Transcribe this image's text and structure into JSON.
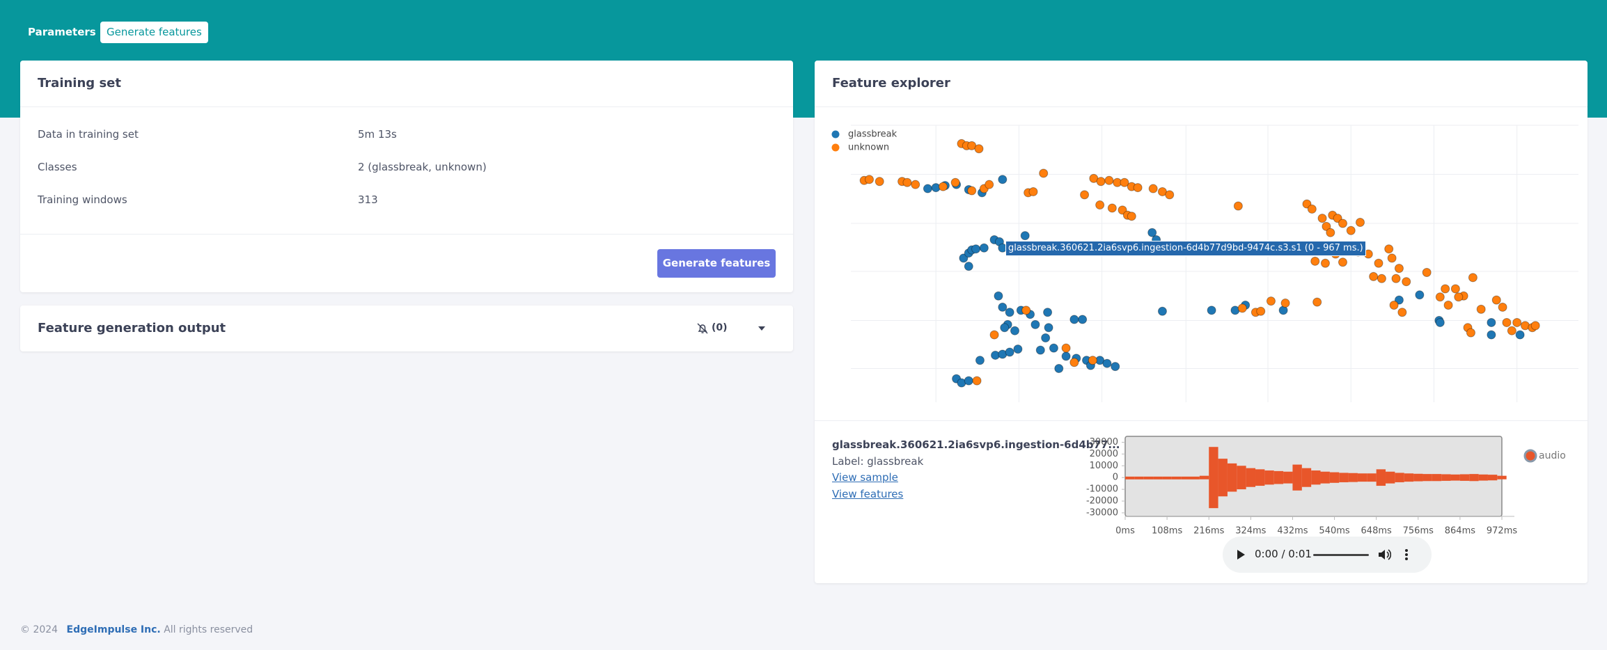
{
  "tabs": [
    "Parameters",
    "Generate features"
  ],
  "training_set": {
    "title": "Training set",
    "rows": [
      [
        "Data in training set",
        "5m 13s"
      ],
      [
        "Classes",
        "2 (glassbreak, unknown)"
      ],
      [
        "Training windows",
        "313"
      ]
    ],
    "button": "Generate features"
  },
  "output": {
    "title": "Feature generation output",
    "count": "(0)"
  },
  "feature_explorer": {
    "title": "Feature explorer",
    "tooltip": "glassbreak.360621.2ia6svp6.ingestion-6d4b77d9bd-9474c.s3.s1 (0 - 967 ms.)"
  },
  "sample": {
    "title": "glassbreak.360621.2ia6svp6.ingestion-6d4b77...",
    "label": "Label: glassbreak",
    "links": [
      "View sample",
      "View features"
    ],
    "player_time": "0:00 / 0:01"
  },
  "footer": {
    "copyright": "© 2024",
    "company": "EdgeImpulse Inc.",
    "rights": "All rights reserved"
  },
  "chart_data": [
    {
      "type": "scatter",
      "xlim": [
        0,
        710
      ],
      "ylim": [
        0,
        271
      ],
      "xticks": [
        83,
        164,
        245,
        327,
        407,
        488,
        569,
        650
      ],
      "yticks": [
        33,
        80,
        128,
        175,
        223,
        271
      ],
      "grid": true,
      "legend": "upper left",
      "series": [
        {
          "name": "glassbreak",
          "color": "#1f77b4",
          "x": [
            75,
            83,
            92,
            103,
            115,
            128,
            148,
            110,
            115,
            118,
            122,
            130,
            140,
            145,
            115,
            148,
            170,
            294,
            298,
            304,
            352,
            375,
            385,
            422,
            574,
            575,
            653,
            625,
            625,
            144,
            148,
            155,
            153,
            150,
            160,
            166,
            175,
            180,
            190,
            193,
            198,
            210,
            220,
            226,
            230,
            234,
            243,
            250,
            258,
            203,
            141,
            148,
            155,
            163,
            126,
            103,
            108,
            115,
            535,
            555,
            192,
            218,
            185
          ],
          "y": [
            209,
            210,
            212,
            213,
            208,
            205,
            218,
            141,
            146,
            149,
            150,
            151,
            159,
            157,
            133,
            151,
            163,
            166,
            159,
            89,
            90,
            90,
            95,
            90,
            80,
            78,
            66,
            78,
            66,
            104,
            93,
            88,
            76,
            73,
            70,
            90,
            86,
            76,
            63,
            73,
            53,
            45,
            43,
            81,
            41,
            36,
            41,
            38,
            35,
            33,
            46,
            47,
            49,
            52,
            41,
            23,
            19,
            21,
            100,
            105,
            88,
            81,
            51
          ]
        },
        {
          "name": "unknown",
          "color": "#ff7f0e",
          "x": [
            108,
            113,
            118,
            125,
            13,
            18,
            28,
            50,
            55,
            63,
            90,
            102,
            118,
            130,
            135,
            173,
            178,
            188,
            228,
            237,
            244,
            252,
            260,
            267,
            274,
            280,
            295,
            304,
            311,
            243,
            255,
            265,
            270,
            274,
            378,
            445,
            450,
            460,
            464,
            468,
            470,
            475,
            480,
            488,
            497,
            453,
            463,
            473,
            480,
            490,
            495,
            505,
            515,
            525,
            528,
            535,
            542,
            532,
            518,
            510,
            562,
            580,
            590,
            598,
            607,
            593,
            615,
            630,
            636,
            640,
            645,
            650,
            658,
            665,
            668,
            382,
            395,
            400,
            410,
            424,
            455,
            538,
            530,
            575,
            583,
            602,
            605,
            123,
            218,
            236,
            140,
            171,
            210
          ],
          "y": [
            253,
            251,
            251,
            248,
            217,
            218,
            216,
            216,
            215,
            213,
            211,
            215,
            207,
            209,
            213,
            205,
            206,
            224,
            203,
            219,
            216,
            217,
            215,
            215,
            211,
            210,
            209,
            206,
            203,
            193,
            190,
            188,
            183,
            182,
            192,
            194,
            189,
            180,
            172,
            166,
            183,
            180,
            175,
            168,
            176,
            138,
            136,
            145,
            137,
            151,
            147,
            145,
            136,
            150,
            141,
            131,
            118,
            121,
            121,
            123,
            127,
            111,
            111,
            104,
            122,
            103,
            91,
            100,
            93,
            78,
            70,
            78,
            75,
            73,
            75,
            92,
            88,
            89,
            99,
            97,
            98,
            88,
            95,
            103,
            95,
            73,
            68,
            21,
            39,
            41,
            66,
            90,
            53
          ]
        }
      ]
    },
    {
      "type": "area",
      "xlim": [
        0,
        972
      ],
      "ylim": [
        -33000,
        35000
      ],
      "xticks": [
        {
          "value": 0,
          "label": "0ms"
        },
        {
          "value": 108,
          "label": "108ms"
        },
        {
          "value": 216,
          "label": "216ms"
        },
        {
          "value": 324,
          "label": "324ms"
        },
        {
          "value": 432,
          "label": "432ms"
        },
        {
          "value": 540,
          "label": "540ms"
        },
        {
          "value": 648,
          "label": "648ms"
        },
        {
          "value": 756,
          "label": "756ms"
        },
        {
          "value": 864,
          "label": "864ms"
        },
        {
          "value": 972,
          "label": "972ms"
        }
      ],
      "yticks": [
        30000,
        20000,
        10000,
        0,
        -10000,
        -20000,
        -30000
      ],
      "x": [
        0,
        24,
        48,
        72,
        96,
        120,
        144,
        168,
        192,
        216,
        240,
        264,
        288,
        312,
        336,
        360,
        384,
        408,
        432,
        456,
        480,
        504,
        528,
        552,
        576,
        600,
        624,
        648,
        672,
        696,
        720,
        744,
        768,
        792,
        816,
        840,
        864,
        888,
        912,
        936,
        960
      ],
      "series": [
        {
          "name": "audio",
          "color": "#e8562a",
          "values": [
            800,
            800,
            800,
            800,
            800,
            800,
            800,
            800,
            1500,
            26000,
            16000,
            12000,
            10000,
            8000,
            7000,
            6000,
            5500,
            5000,
            11000,
            8000,
            6000,
            5000,
            4500,
            4000,
            3800,
            3500,
            3500,
            7000,
            5000,
            4000,
            3500,
            3200,
            3000,
            3000,
            2800,
            2600,
            2800,
            3000,
            2600,
            2400,
            1500
          ]
        }
      ]
    }
  ]
}
